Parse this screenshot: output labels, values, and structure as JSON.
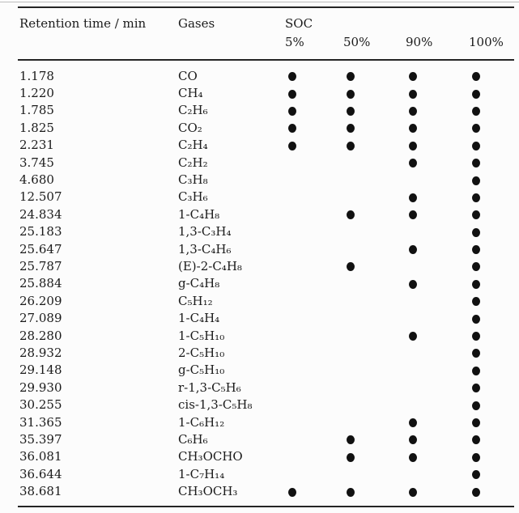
{
  "colors": {
    "background": "#fcfcfc",
    "text": "#1b1b1b",
    "rule": "#252525",
    "dot": "#111111"
  },
  "table": {
    "headers": {
      "retention": "Retention time / min",
      "gases": "Gases",
      "soc": "SOC",
      "soc_levels": [
        "5%",
        "50%",
        "90%",
        "100%"
      ]
    },
    "rows": [
      {
        "time": "1.178",
        "gas": "CO",
        "dots": [
          1,
          1,
          1,
          1
        ]
      },
      {
        "time": "1.220",
        "gas": "CH₄",
        "dots": [
          1,
          1,
          1,
          1
        ]
      },
      {
        "time": "1.785",
        "gas": "C₂H₆",
        "dots": [
          1,
          1,
          1,
          1
        ]
      },
      {
        "time": "1.825",
        "gas": "CO₂",
        "dots": [
          1,
          1,
          1,
          1
        ]
      },
      {
        "time": "2.231",
        "gas": "C₂H₄",
        "dots": [
          1,
          1,
          1,
          1
        ]
      },
      {
        "time": "3.745",
        "gas": "C₂H₂",
        "dots": [
          0,
          0,
          1,
          1
        ]
      },
      {
        "time": "4.680",
        "gas": "C₃H₈",
        "dots": [
          0,
          0,
          0,
          1
        ]
      },
      {
        "time": "12.507",
        "gas": "C₃H₆",
        "dots": [
          0,
          0,
          1,
          1
        ]
      },
      {
        "time": "24.834",
        "gas": "1-C₄H₈",
        "dots": [
          0,
          1,
          1,
          1
        ]
      },
      {
        "time": "25.183",
        "gas": "1,3-C₃H₄",
        "dots": [
          0,
          0,
          0,
          1
        ]
      },
      {
        "time": "25.647",
        "gas": "1,3-C₄H₆",
        "dots": [
          0,
          0,
          1,
          1
        ]
      },
      {
        "time": "25.787",
        "gas": "(E)-2-C₄H₈",
        "dots": [
          0,
          1,
          0,
          1
        ]
      },
      {
        "time": "25.884",
        "gas": "g-C₄H₈",
        "dots": [
          0,
          0,
          1,
          1
        ]
      },
      {
        "time": "26.209",
        "gas": "C₅H₁₂",
        "dots": [
          0,
          0,
          0,
          1
        ]
      },
      {
        "time": "27.089",
        "gas": "1-C₄H₄",
        "dots": [
          0,
          0,
          0,
          1
        ]
      },
      {
        "time": "28.280",
        "gas": "1-C₅H₁₀",
        "dots": [
          0,
          0,
          1,
          1
        ]
      },
      {
        "time": "28.932",
        "gas": "2-C₅H₁₀",
        "dots": [
          0,
          0,
          0,
          1
        ]
      },
      {
        "time": "29.148",
        "gas": "g-C₅H₁₀",
        "dots": [
          0,
          0,
          0,
          1
        ]
      },
      {
        "time": "29.930",
        "gas": "r-1,3-C₅H₆",
        "dots": [
          0,
          0,
          0,
          1
        ]
      },
      {
        "time": "30.255",
        "gas": "cis-1,3-C₅H₈",
        "dots": [
          0,
          0,
          0,
          1
        ]
      },
      {
        "time": "31.365",
        "gas": "1-C₆H₁₂",
        "dots": [
          0,
          0,
          1,
          1
        ]
      },
      {
        "time": "35.397",
        "gas": "C₆H₆",
        "dots": [
          0,
          1,
          1,
          1
        ]
      },
      {
        "time": "36.081",
        "gas": "CH₃OCHO",
        "dots": [
          0,
          1,
          1,
          1
        ]
      },
      {
        "time": "36.644",
        "gas": "1-C₇H₁₄",
        "dots": [
          0,
          0,
          0,
          1
        ]
      },
      {
        "time": "38.681",
        "gas": "CH₃OCH₃",
        "dots": [
          1,
          1,
          1,
          1
        ]
      }
    ]
  }
}
